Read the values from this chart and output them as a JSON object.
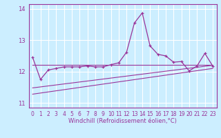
{
  "xlabel": "Windchill (Refroidissement éolien,°C)",
  "ylabel": "",
  "bg_color": "#cceeff",
  "line_color": "#993399",
  "grid_color": "#ffffff",
  "xlim": [
    -0.5,
    23.5
  ],
  "ylim": [
    10.85,
    14.15
  ],
  "yticks": [
    11,
    12,
    13,
    14
  ],
  "xticks": [
    0,
    1,
    2,
    3,
    4,
    5,
    6,
    7,
    8,
    9,
    10,
    11,
    12,
    13,
    14,
    15,
    16,
    17,
    18,
    19,
    20,
    21,
    22,
    23
  ],
  "line1_x": [
    0,
    1,
    2,
    3,
    4,
    5,
    6,
    7,
    8,
    9,
    10,
    11,
    12,
    13,
    14,
    15,
    16,
    17,
    18,
    19,
    20,
    21,
    22,
    23
  ],
  "line1_y": [
    12.45,
    11.75,
    12.05,
    12.1,
    12.15,
    12.15,
    12.15,
    12.18,
    12.15,
    12.15,
    12.22,
    12.28,
    12.62,
    13.55,
    13.87,
    12.82,
    12.55,
    12.5,
    12.3,
    12.32,
    12.02,
    12.18,
    12.58,
    12.18
  ],
  "line2_x": [
    0,
    23
  ],
  "line2_y": [
    12.22,
    12.22
  ],
  "line3_x": [
    0,
    23
  ],
  "line3_y": [
    11.28,
    12.1
  ],
  "line4_x": [
    0,
    23
  ],
  "line4_y": [
    11.48,
    12.2
  ]
}
